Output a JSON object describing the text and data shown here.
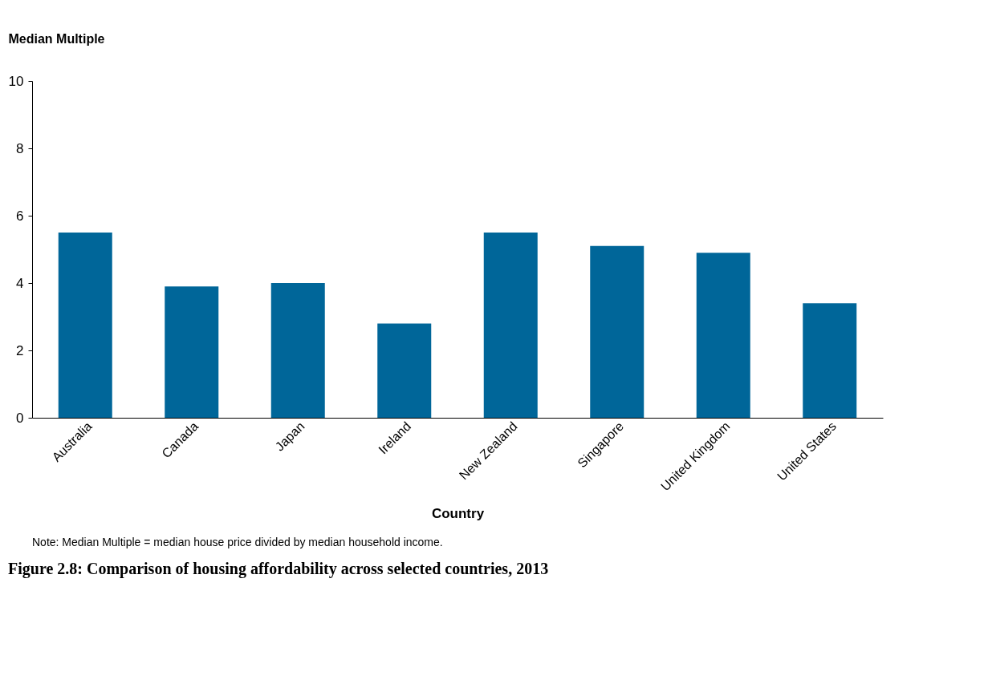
{
  "chart_data": {
    "type": "bar",
    "title": "Figure 2.8: Comparison of housing affordability across selected countries, 2013",
    "xlabel": "Country",
    "ylabel": "Median Multiple",
    "categories": [
      "Australia",
      "Canada",
      "Japan",
      "Ireland",
      "New Zealand",
      "Singapore",
      "United Kingdom",
      "United States"
    ],
    "values": [
      5.5,
      3.9,
      4.0,
      2.8,
      5.5,
      5.1,
      4.9,
      3.4
    ],
    "color": "#006699",
    "ylim": [
      0,
      10
    ],
    "yticks": [
      0,
      2,
      4,
      6,
      8,
      10
    ],
    "grid": false,
    "annotations": [
      "Note: Median Multiple = median house price divided by median household income."
    ]
  }
}
